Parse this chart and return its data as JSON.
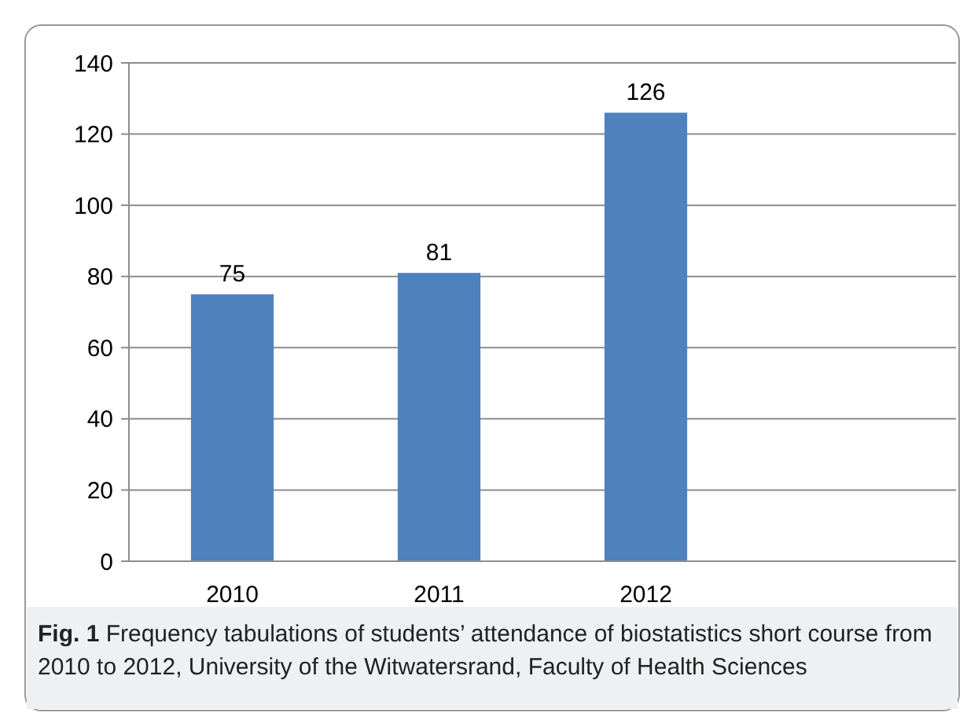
{
  "chart_data": {
    "type": "bar",
    "categories": [
      "2010",
      "2011",
      "2012",
      null
    ],
    "values": [
      75,
      81,
      126,
      null
    ],
    "color": "#4f81bd",
    "ylim": [
      0,
      140
    ],
    "yticks": [
      0,
      20,
      40,
      60,
      80,
      100,
      120,
      140
    ],
    "grid": "y",
    "data_labels": true,
    "annotations": [
      "Fig. 1 Frequency tabulations of students’ attendance of biostatistics short course from 2010 to 2012, University of the Witwatersrand, Faculty of Health Sciences"
    ]
  }
}
